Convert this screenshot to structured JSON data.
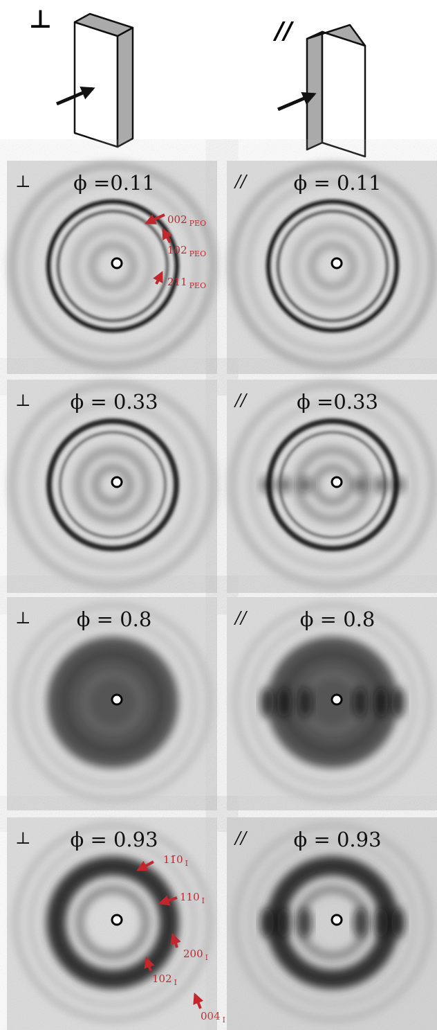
{
  "header": {
    "perpendicular": "⊥",
    "parallel": "//"
  },
  "panels": [
    {
      "symbol": "⊥",
      "phi": "ϕ =0.11",
      "annotations": [
        {
          "main": "002",
          "sub": "PEO"
        },
        {
          "main": "102",
          "sub": "PEO"
        },
        {
          "main": "211",
          "sub": "PEO"
        }
      ]
    },
    {
      "symbol": "//",
      "phi": "ϕ = 0.11",
      "annotations": []
    },
    {
      "symbol": "⊥",
      "phi": "ϕ = 0.33",
      "annotations": []
    },
    {
      "symbol": "//",
      "phi": "ϕ =0.33",
      "annotations": []
    },
    {
      "symbol": "⊥",
      "phi": "ϕ = 0.8",
      "annotations": []
    },
    {
      "symbol": "//",
      "phi": "ϕ = 0.8",
      "annotations": []
    },
    {
      "symbol": "⊥",
      "phi": "ϕ = 0.93",
      "annotations": [
        {
          "main": "11̄0",
          "sub": "I"
        },
        {
          "main": "110",
          "sub": "I"
        },
        {
          "main": "200",
          "sub": "I"
        },
        {
          "main": "102",
          "sub": "I"
        },
        {
          "main": "004",
          "sub": "I"
        }
      ]
    },
    {
      "symbol": "//",
      "phi": "ϕ = 0.93",
      "annotations": []
    }
  ]
}
